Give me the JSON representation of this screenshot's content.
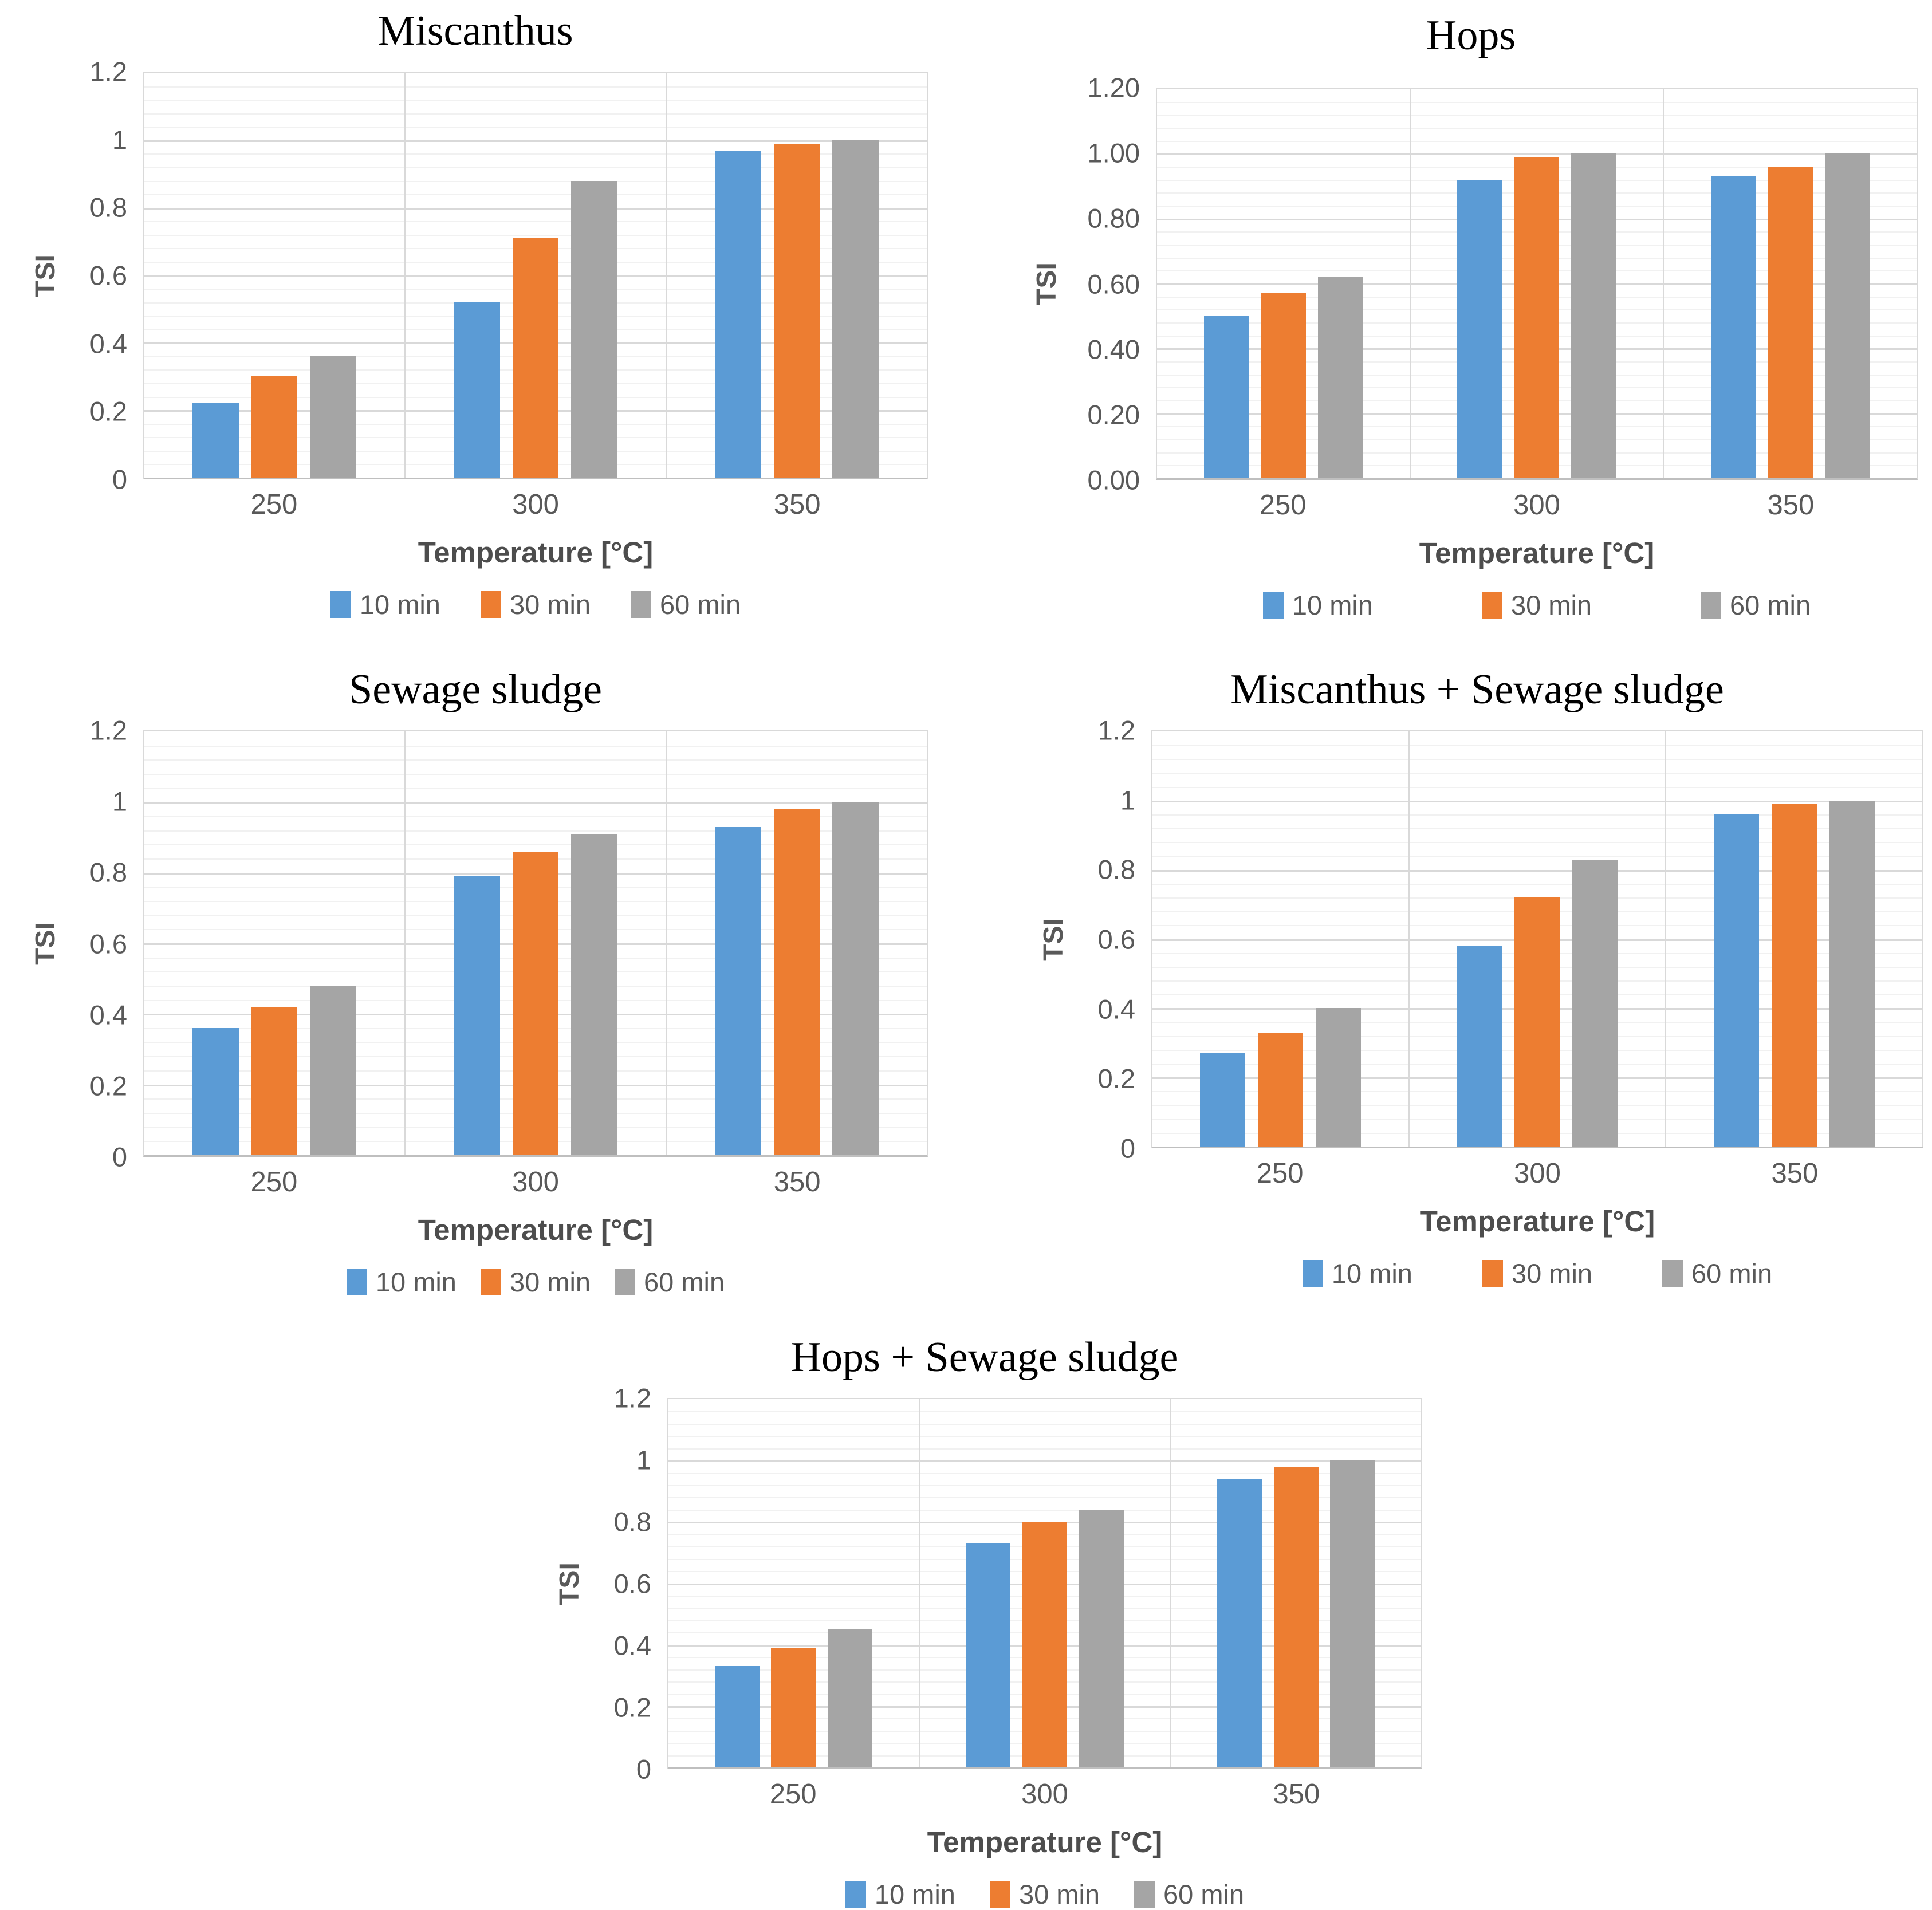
{
  "colors": {
    "series": [
      "#5B9BD5",
      "#ED7D31",
      "#A5A5A5"
    ],
    "axis_text": "#595959",
    "title_text": "#000000",
    "grid_major": "#D9D9D9",
    "grid_minor": "#F1F1F1",
    "axis_line": "#BFBFBF",
    "plot_border": "#D9D9D9"
  },
  "chart_data": [
    {
      "type": "bar",
      "title": "Miscanthus",
      "xlabel": "Temperature [°C]",
      "ylabel": "TSI",
      "categories": [
        "250",
        "300",
        "350"
      ],
      "series": [
        {
          "name": "10 min",
          "values": [
            0.22,
            0.52,
            0.97
          ]
        },
        {
          "name": "30 min",
          "values": [
            0.3,
            0.71,
            0.99
          ]
        },
        {
          "name": "60 min",
          "values": [
            0.36,
            0.88,
            1.0
          ]
        }
      ],
      "ylim": [
        0,
        1.2
      ],
      "yticks": [
        "1.2",
        "1",
        "0.8",
        "0.6",
        "0.4",
        "0.2",
        "0"
      ],
      "grid": true,
      "legend": [
        "10 min",
        "30 min",
        "60 min"
      ],
      "legend_position": "bottom"
    },
    {
      "type": "bar",
      "title": "Hops",
      "xlabel": "Temperature [°C]",
      "ylabel": "TSI",
      "categories": [
        "250",
        "300",
        "350"
      ],
      "series": [
        {
          "name": "10 min",
          "values": [
            0.5,
            0.92,
            0.93
          ]
        },
        {
          "name": "30 min",
          "values": [
            0.57,
            0.99,
            0.96
          ]
        },
        {
          "name": "60 min",
          "values": [
            0.62,
            1.0,
            1.0
          ]
        }
      ],
      "ylim": [
        0,
        1.2
      ],
      "yticks": [
        "1.20",
        "1.00",
        "0.80",
        "0.60",
        "0.40",
        "0.20",
        "0.00"
      ],
      "grid": true,
      "legend": [
        "10 min",
        "30 min",
        "60 min"
      ],
      "legend_position": "bottom"
    },
    {
      "type": "bar",
      "title": "Sewage sludge",
      "xlabel": "Temperature [°C]",
      "ylabel": "TSI",
      "categories": [
        "250",
        "300",
        "350"
      ],
      "series": [
        {
          "name": "10 min",
          "values": [
            0.36,
            0.79,
            0.93
          ]
        },
        {
          "name": "30 min",
          "values": [
            0.42,
            0.86,
            0.98
          ]
        },
        {
          "name": "60 min",
          "values": [
            0.48,
            0.91,
            1.0
          ]
        }
      ],
      "ylim": [
        0,
        1.2
      ],
      "yticks": [
        "1.2",
        "1",
        "0.8",
        "0.6",
        "0.4",
        "0.2",
        "0"
      ],
      "grid": true,
      "legend": [
        "10 min",
        "30 min",
        "60 min"
      ],
      "legend_position": "bottom"
    },
    {
      "type": "bar",
      "title": "Miscanthus + Sewage sludge",
      "xlabel": "Temperature [°C]",
      "ylabel": "TSI",
      "categories": [
        "250",
        "300",
        "350"
      ],
      "series": [
        {
          "name": "10 min",
          "values": [
            0.27,
            0.58,
            0.96
          ]
        },
        {
          "name": "30 min",
          "values": [
            0.33,
            0.72,
            0.99
          ]
        },
        {
          "name": "60 min",
          "values": [
            0.4,
            0.83,
            1.0
          ]
        }
      ],
      "ylim": [
        0,
        1.2
      ],
      "yticks": [
        "1.2",
        "1",
        "0.8",
        "0.6",
        "0.4",
        "0.2",
        "0"
      ],
      "grid": true,
      "legend": [
        "10 min",
        "30 min",
        "60 min"
      ],
      "legend_position": "bottom"
    },
    {
      "type": "bar",
      "title": "Hops + Sewage sludge",
      "xlabel": "Temperature [°C]",
      "ylabel": "TSI",
      "categories": [
        "250",
        "300",
        "350"
      ],
      "series": [
        {
          "name": "10 min",
          "values": [
            0.33,
            0.73,
            0.94
          ]
        },
        {
          "name": "30 min",
          "values": [
            0.39,
            0.8,
            0.98
          ]
        },
        {
          "name": "60 min",
          "values": [
            0.45,
            0.84,
            1.0
          ]
        }
      ],
      "ylim": [
        0,
        1.2
      ],
      "yticks": [
        "1.2",
        "1",
        "0.8",
        "0.6",
        "0.4",
        "0.2",
        "0"
      ],
      "grid": true,
      "legend": [
        "10 min",
        "30 min",
        "60 min"
      ],
      "legend_position": "bottom"
    }
  ]
}
